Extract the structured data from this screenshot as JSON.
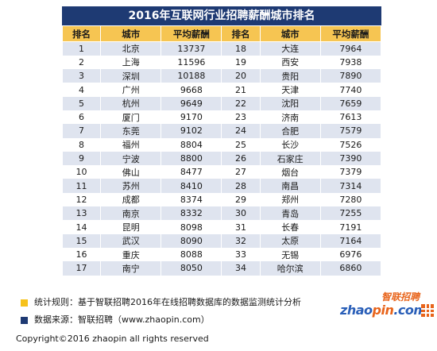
{
  "title": "2016年互联网行业招聘薪酬城市排名",
  "headers": [
    "排名",
    "城市",
    "平均薪酬",
    "排名",
    "城市",
    "平均薪酬"
  ],
  "rows": [
    [
      "1",
      "北京",
      "13737",
      "18",
      "大连",
      "7964"
    ],
    [
      "2",
      "上海",
      "11596",
      "19",
      "西安",
      "7938"
    ],
    [
      "3",
      "深圳",
      "10188",
      "20",
      "贵阳",
      "7890"
    ],
    [
      "4",
      "广州",
      "9668",
      "21",
      "天津",
      "7740"
    ],
    [
      "5",
      "杭州",
      "9649",
      "22",
      "沈阳",
      "7659"
    ],
    [
      "6",
      "厦门",
      "9170",
      "23",
      "济南",
      "7613"
    ],
    [
      "7",
      "东莞",
      "9102",
      "24",
      "合肥",
      "7579"
    ],
    [
      "8",
      "福州",
      "8804",
      "25",
      "长沙",
      "7526"
    ],
    [
      "9",
      "宁波",
      "8800",
      "26",
      "石家庄",
      "7390"
    ],
    [
      "10",
      "佛山",
      "8477",
      "27",
      "烟台",
      "7379"
    ],
    [
      "11",
      "苏州",
      "8410",
      "28",
      "南昌",
      "7314"
    ],
    [
      "12",
      "成都",
      "8374",
      "29",
      "郑州",
      "7280"
    ],
    [
      "13",
      "南京",
      "8332",
      "30",
      "青岛",
      "7255"
    ],
    [
      "14",
      "昆明",
      "8098",
      "31",
      "长春",
      "7191"
    ],
    [
      "15",
      "武汉",
      "8090",
      "32",
      "太原",
      "7164"
    ],
    [
      "16",
      "重庆",
      "8088",
      "33",
      "无锡",
      "6976"
    ],
    [
      "17",
      "南宁",
      "8050",
      "34",
      "哈尔滨",
      "6860"
    ]
  ],
  "notes": {
    "rule": "统计规则：基于智联招聘2016年在线招聘数据库的数据监测统计分析",
    "source": "数据来源：智联招聘（www.zhaopin.com）"
  },
  "copyright": "Copyright©2016 zhaopin all rights reserved",
  "logo": {
    "brand_cn": "智联招聘",
    "brand_en_a": "zhao",
    "brand_en_dot": "pin",
    "brand_en_b": ".com"
  },
  "colors": {
    "title_bg": "#1e3a73",
    "header_bg": "#f6c552",
    "row_stripe": "#dfe4ef",
    "accent_orange": "#e8641b"
  }
}
